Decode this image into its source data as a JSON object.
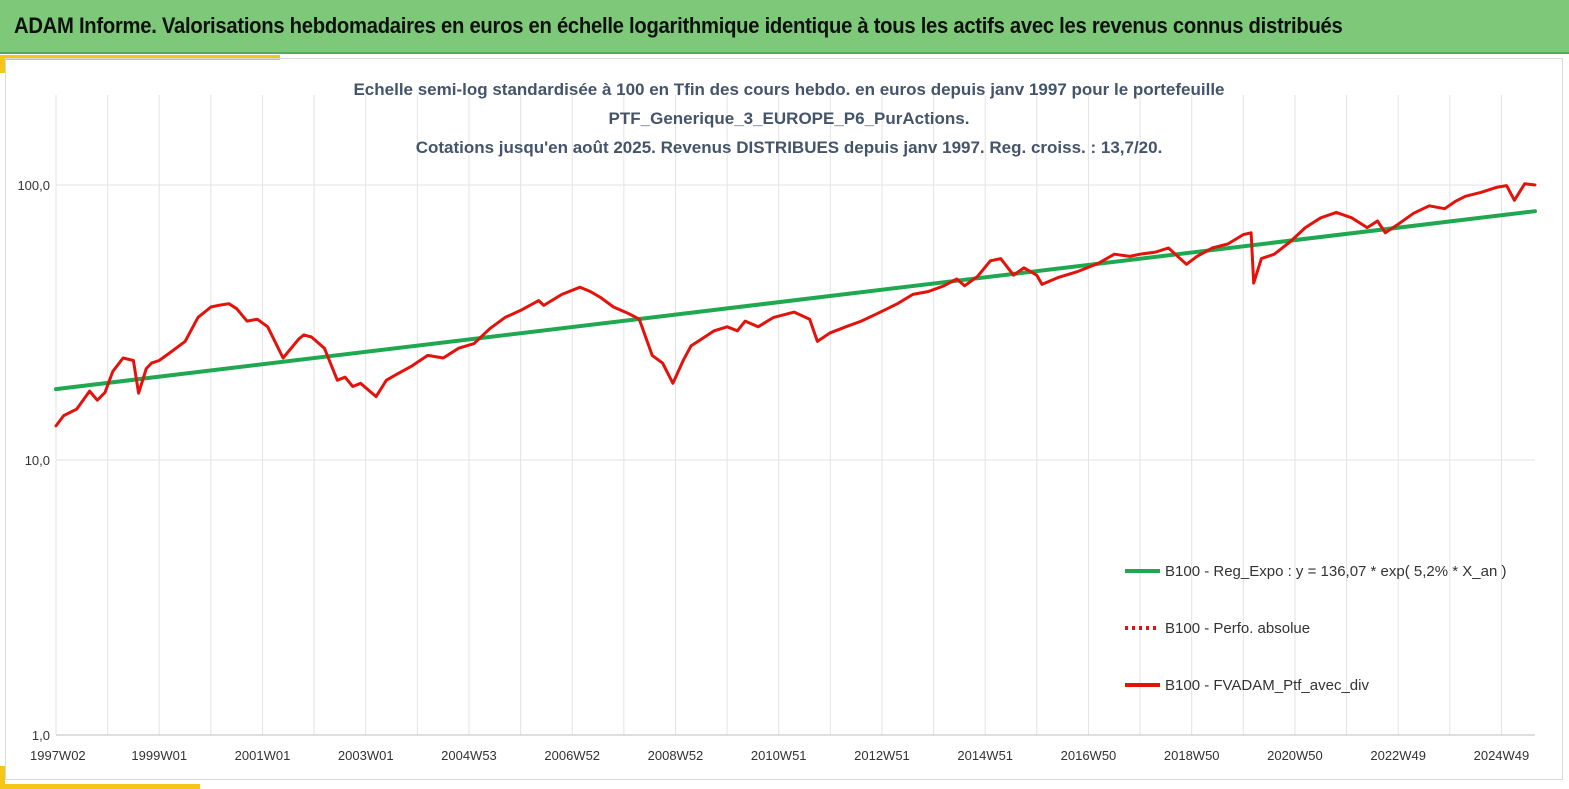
{
  "banner": {
    "title": "ADAM Informe. Valorisations hebdomadaires en euros en échelle logarithmique identique à tous les actifs avec les revenus connus distribués"
  },
  "chart_data": {
    "type": "line",
    "title_lines": [
      "Echelle semi-log standardisée à 100 en Tfin des cours hebdo.  en euros depuis janv 1997 pour le portefeuille",
      "PTF_Generique_3_EUROPE_P6_PurActions.",
      "Cotations jusqu'en août 2025. Revenus DISTRIBUES depuis janv 1997. Reg. croiss. : 13,7/20."
    ],
    "y_scale": "log",
    "ylim": [
      1,
      100
    ],
    "y_ticks": [
      {
        "value": 1,
        "label": "1,0"
      },
      {
        "value": 10,
        "label": "10,0"
      },
      {
        "value": 100,
        "label": "100,0"
      }
    ],
    "xlim": [
      1997.0,
      2025.65
    ],
    "x_ticks": [
      {
        "value": 1997.0,
        "label": "1997W02"
      },
      {
        "value": 1999.0,
        "label": "1999W01"
      },
      {
        "value": 2001.0,
        "label": "2001W01"
      },
      {
        "value": 2003.0,
        "label": "2003W01"
      },
      {
        "value": 2005.0,
        "label": "2004W53"
      },
      {
        "value": 2007.0,
        "label": "2006W52"
      },
      {
        "value": 2009.0,
        "label": "2008W52"
      },
      {
        "value": 2011.0,
        "label": "2010W51"
      },
      {
        "value": 2013.0,
        "label": "2012W51"
      },
      {
        "value": 2015.0,
        "label": "2014W51"
      },
      {
        "value": 2017.0,
        "label": "2016W50"
      },
      {
        "value": 2019.0,
        "label": "2018W50"
      },
      {
        "value": 2021.0,
        "label": "2020W50"
      },
      {
        "value": 2023.0,
        "label": "2022W49"
      },
      {
        "value": 2025.0,
        "label": "2024W49"
      }
    ],
    "legend_position": "bottom-right",
    "series": [
      {
        "name": "B100 - Reg_Expo : y = 136,07 * exp( 5,2% *  X_an )",
        "color": "#1fa84f",
        "style": "solid",
        "x": [
          1997.0,
          2025.65
        ],
        "y": [
          18.1,
          80.3
        ]
      },
      {
        "name": "B100 - Perfo. absolue",
        "color": "#e3120b",
        "style": "dotted",
        "x": [],
        "y": []
      },
      {
        "name": "B100 - FVADAM_Ptf_avec_div",
        "color": "#e3120b",
        "style": "solid",
        "x": [
          1997.0,
          1997.15,
          1997.4,
          1997.65,
          1997.8,
          1997.95,
          1998.1,
          1998.3,
          1998.5,
          1998.6,
          1998.75,
          1998.85,
          1999.0,
          1999.2,
          1999.5,
          1999.75,
          2000.0,
          2000.15,
          2000.35,
          2000.5,
          2000.7,
          2000.9,
          2001.1,
          2001.4,
          2001.7,
          2001.8,
          2001.95,
          2002.2,
          2002.45,
          2002.6,
          2002.75,
          2002.9,
          2003.2,
          2003.4,
          2003.6,
          2003.9,
          2004.2,
          2004.5,
          2004.8,
          2005.1,
          2005.4,
          2005.7,
          2006.0,
          2006.35,
          2006.45,
          2006.8,
          2007.15,
          2007.35,
          2007.55,
          2007.8,
          2008.1,
          2008.3,
          2008.55,
          2008.75,
          2008.95,
          2009.15,
          2009.3,
          2009.5,
          2009.75,
          2010.0,
          2010.2,
          2010.35,
          2010.6,
          2010.9,
          2011.3,
          2011.6,
          2011.75,
          2012.0,
          2012.3,
          2012.6,
          2012.9,
          2013.3,
          2013.6,
          2013.9,
          2014.2,
          2014.45,
          2014.6,
          2014.85,
          2015.1,
          2015.3,
          2015.55,
          2015.75,
          2016.0,
          2016.1,
          2016.4,
          2016.8,
          2017.2,
          2017.5,
          2017.8,
          2018.0,
          2018.3,
          2018.55,
          2018.9,
          2019.1,
          2019.4,
          2019.7,
          2020.0,
          2020.15,
          2020.2,
          2020.35,
          2020.6,
          2020.9,
          2021.2,
          2021.5,
          2021.8,
          2022.1,
          2022.4,
          2022.6,
          2022.75,
          2023.0,
          2023.3,
          2023.6,
          2023.9,
          2024.1,
          2024.3,
          2024.6,
          2024.9,
          2025.1,
          2025.25,
          2025.45,
          2025.65
        ],
        "y": [
          13.3,
          14.5,
          15.3,
          17.8,
          16.5,
          17.6,
          21.0,
          23.5,
          23.0,
          17.5,
          21.5,
          22.5,
          23.0,
          24.5,
          27.0,
          33.0,
          36.0,
          36.5,
          37.0,
          35.5,
          32.0,
          32.5,
          30.5,
          23.5,
          27.5,
          28.5,
          28.0,
          25.5,
          19.5,
          20.0,
          18.5,
          19.0,
          17.0,
          19.5,
          20.5,
          22.0,
          24.0,
          23.5,
          25.5,
          26.5,
          30.0,
          33.0,
          35.0,
          38.0,
          36.5,
          40.0,
          42.5,
          41.0,
          39.0,
          36.0,
          34.0,
          32.5,
          24.0,
          22.5,
          19.0,
          23.0,
          26.0,
          27.5,
          29.5,
          30.5,
          29.5,
          32.0,
          30.5,
          33.0,
          34.5,
          32.5,
          27.0,
          29.0,
          30.5,
          32.0,
          34.0,
          37.0,
          40.0,
          41.0,
          43.0,
          45.5,
          43.0,
          46.5,
          53.0,
          54.0,
          47.0,
          50.0,
          47.0,
          43.5,
          46.0,
          48.5,
          52.0,
          56.0,
          55.0,
          56.0,
          57.0,
          59.0,
          51.5,
          55.0,
          59.0,
          61.0,
          66.0,
          67.0,
          44.0,
          54.0,
          56.0,
          62.0,
          70.0,
          76.0,
          79.5,
          76.0,
          70.0,
          74.0,
          67.0,
          72.0,
          79.0,
          84.0,
          82.0,
          87.0,
          91.0,
          94.0,
          98.0,
          99.5,
          88.0,
          101.0,
          100.0
        ]
      }
    ]
  }
}
